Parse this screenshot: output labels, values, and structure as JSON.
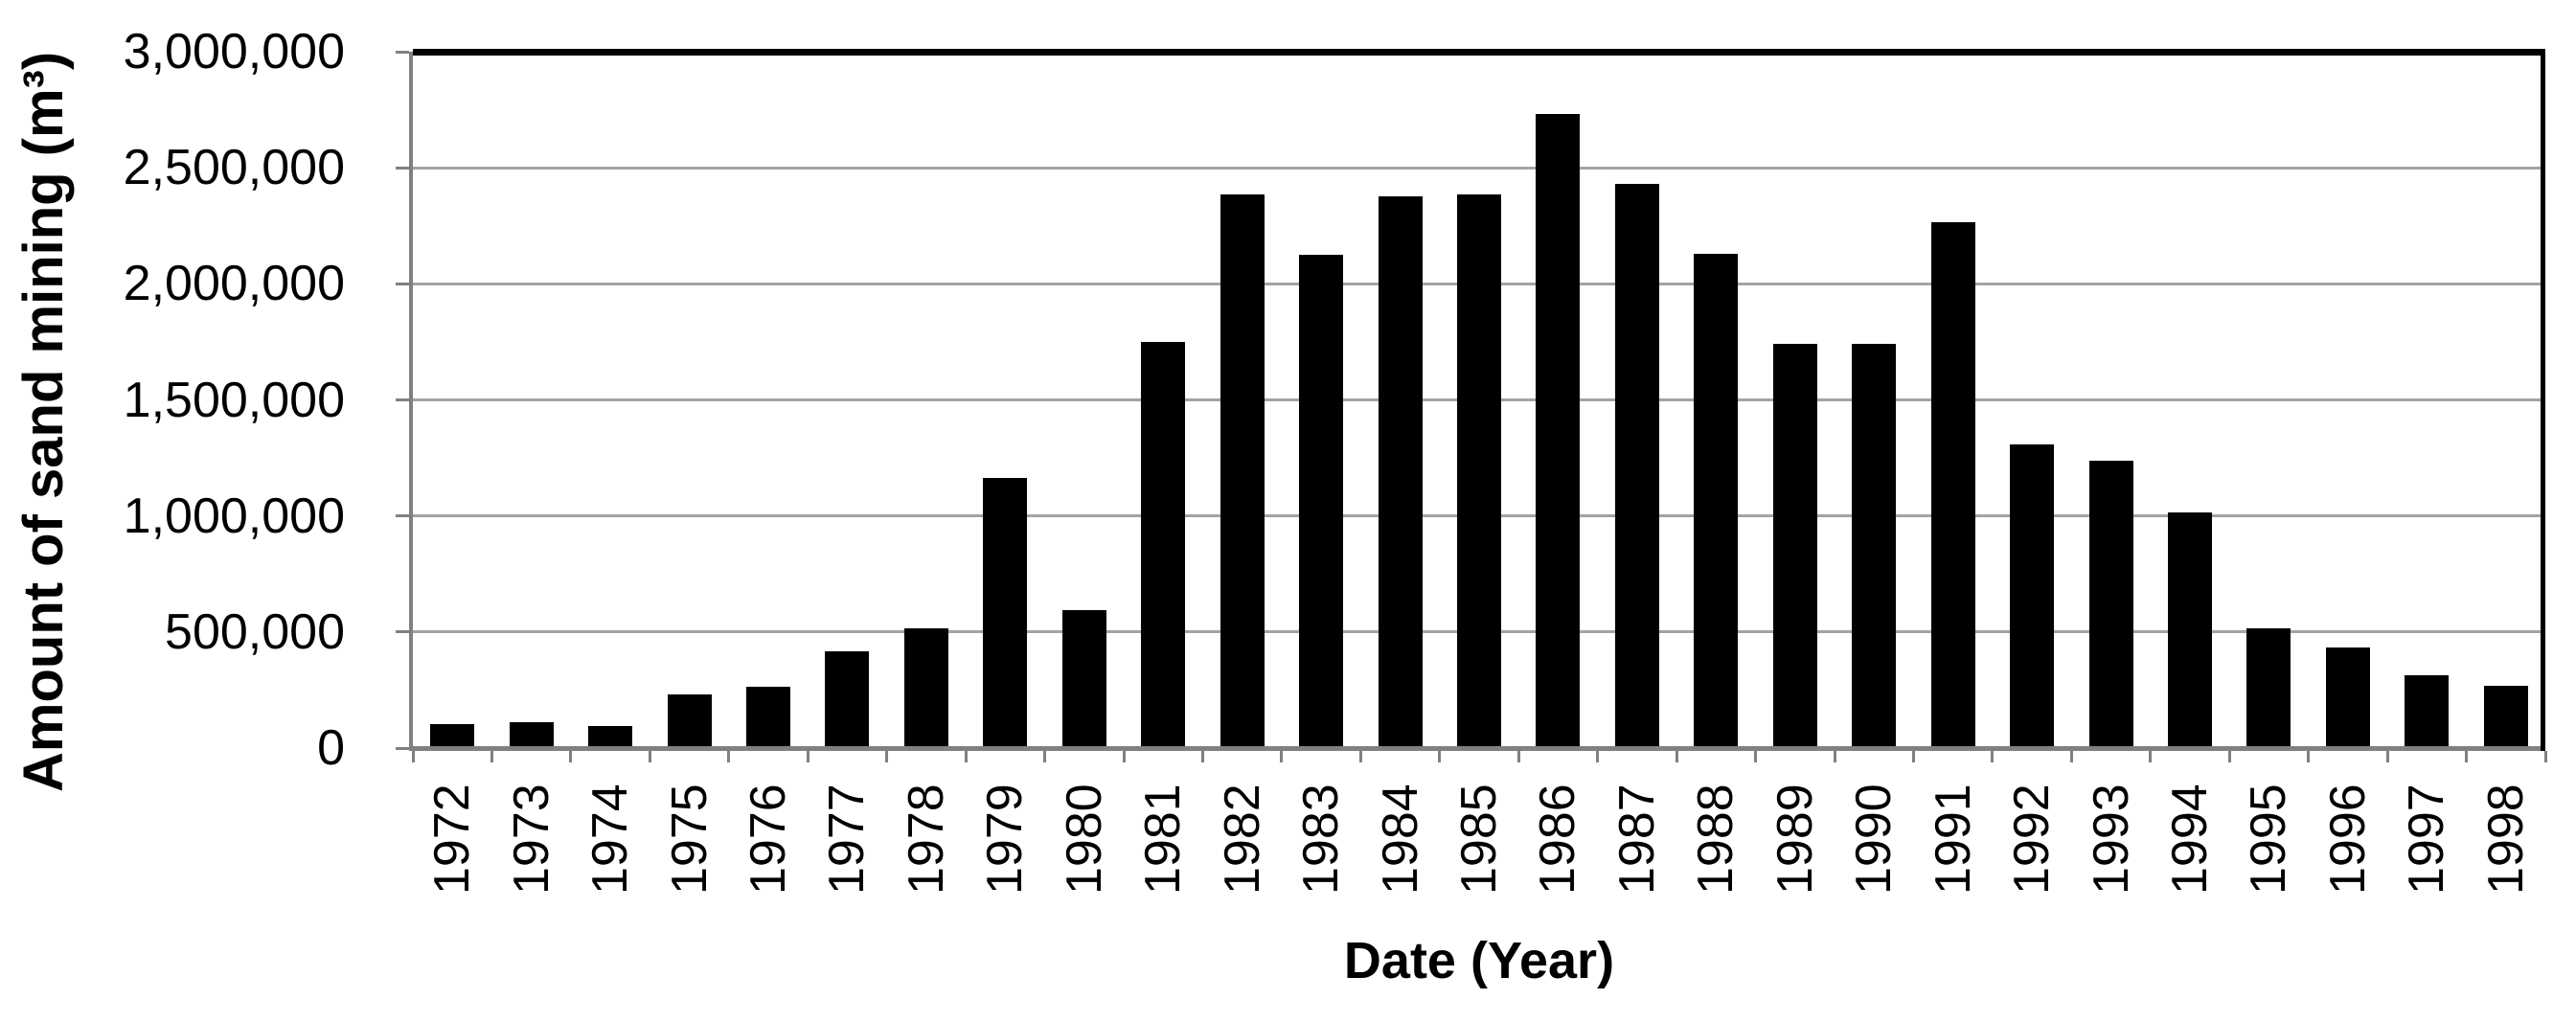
{
  "chart_data": {
    "type": "bar",
    "title": "",
    "xlabel": "Date (Year)",
    "ylabel": "Amount of sand mining (m³)",
    "categories": [
      "1972",
      "1973",
      "1974",
      "1975",
      "1976",
      "1977",
      "1978",
      "1979",
      "1980",
      "1981",
      "1982",
      "1983",
      "1984",
      "1985",
      "1986",
      "1987",
      "1988",
      "1989",
      "1990",
      "1991",
      "1992",
      "1993",
      "1994",
      "1995",
      "1996",
      "1997",
      "1998"
    ],
    "values": [
      105000,
      110000,
      95000,
      230000,
      265000,
      415000,
      515000,
      1165000,
      595000,
      1750000,
      2385000,
      2125000,
      2375000,
      2385000,
      2730000,
      2430000,
      2130000,
      1740000,
      1740000,
      2265000,
      1310000,
      1240000,
      1015000,
      515000,
      435000,
      315000,
      270000
    ],
    "ylim": [
      0,
      3000000
    ],
    "ytick_interval": 500000,
    "yticks": [
      {
        "value": 0,
        "label": "0"
      },
      {
        "value": 500000,
        "label": "500,000"
      },
      {
        "value": 1000000,
        "label": "1,000,000"
      },
      {
        "value": 1500000,
        "label": "1,500,000"
      },
      {
        "value": 2000000,
        "label": "2,000,000"
      },
      {
        "value": 2500000,
        "label": "2,500,000"
      },
      {
        "value": 3000000,
        "label": "3,000,000"
      }
    ],
    "grid": "horizontal",
    "legend": "none",
    "colors": {
      "bar": "#000000",
      "gridline": "#a3a3a3",
      "axis": "#808080",
      "border": "#000000",
      "background": "#ffffff",
      "text": "#000000"
    }
  }
}
